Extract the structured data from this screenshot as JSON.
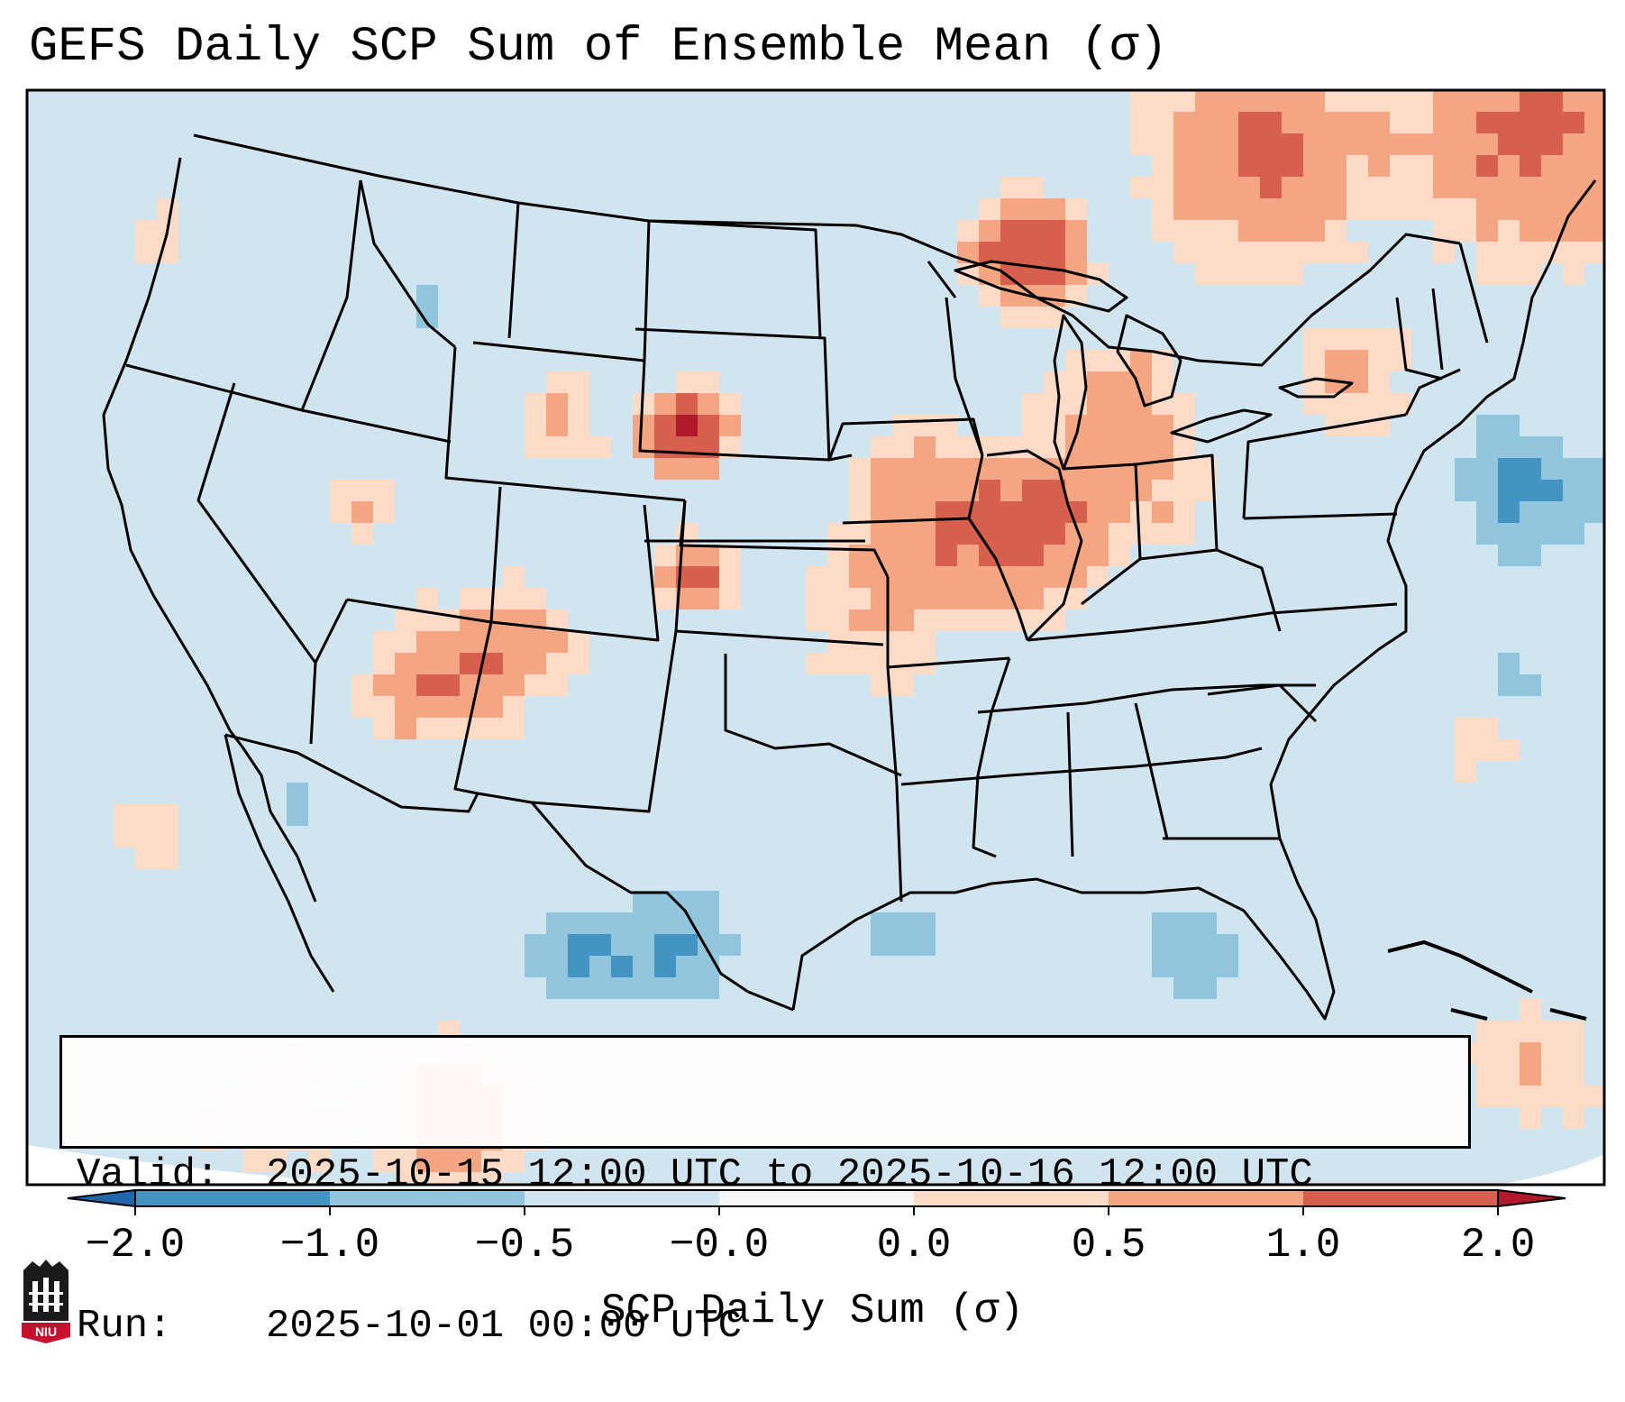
{
  "title": "GEFS Daily SCP Sum of Ensemble Mean (σ)",
  "info": {
    "valid_label": "Valid:",
    "valid_value": "2025-10-15 12:00 UTC to 2025-10-16 12:00 UTC",
    "run_label": "Run:",
    "run_value": "2025-10-01 00:00 UTC"
  },
  "colorbar": {
    "label": "SCP Daily Sum (σ)",
    "ticks": [
      "−2.0",
      "−1.0",
      "−0.5",
      "−0.0",
      "0.0",
      "0.5",
      "1.0",
      "2.0"
    ],
    "bins": [
      {
        "from": "-2.0",
        "to": "-1.0",
        "color": "#4393c3"
      },
      {
        "from": "-1.0",
        "to": "-0.5",
        "color": "#92c5de"
      },
      {
        "from": "-0.5",
        "to": "-0.0",
        "color": "#d1e5f0"
      },
      {
        "from": "-0.0",
        "to": "0.0",
        "color": "#f7f7f7"
      },
      {
        "from": "0.0",
        "to": "0.5",
        "color": "#fddbc7"
      },
      {
        "from": "0.5",
        "to": "1.0",
        "color": "#f4a582"
      },
      {
        "from": "1.0",
        "to": "2.0",
        "color": "#d6604d"
      }
    ],
    "under_color": "#2166ac",
    "over_color": "#b2182b"
  },
  "map": {
    "region": "Continental United States",
    "background_color": "#d1e5f0",
    "outside_color": "#ffffff"
  },
  "logo": {
    "text": "NIU"
  }
}
